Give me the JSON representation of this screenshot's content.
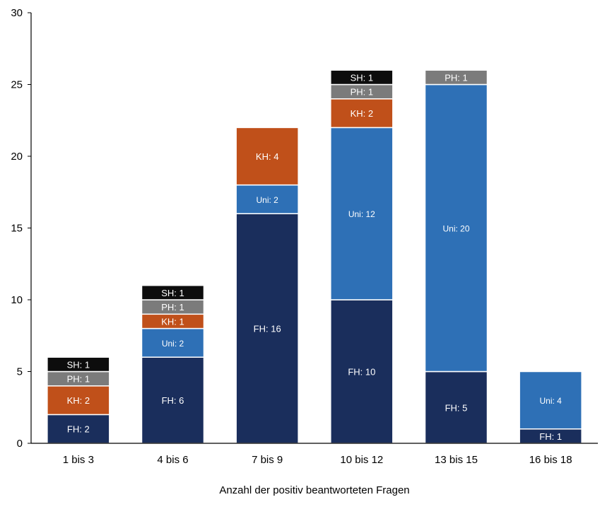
{
  "chart_data": {
    "type": "bar",
    "stacked": true,
    "title": "",
    "xlabel": "Anzahl der positiv beantworteten Fragen",
    "ylabel": "",
    "ylim": [
      0,
      30
    ],
    "yticks": [
      0,
      5,
      10,
      15,
      20,
      25,
      30
    ],
    "grid": false,
    "legend": "none",
    "categories": [
      "1 bis 3",
      "4 bis 6",
      "7 bis 9",
      "10 bis 12",
      "13 bis 15",
      "16 bis 18"
    ],
    "series": [
      {
        "name": "FH",
        "color": "#1a2e5c",
        "values": [
          2,
          6,
          16,
          10,
          5,
          1
        ]
      },
      {
        "name": "Uni",
        "color": "#2e70b6",
        "values": [
          0,
          2,
          2,
          12,
          20,
          4
        ]
      },
      {
        "name": "KH",
        "color": "#c0501a",
        "values": [
          2,
          1,
          4,
          2,
          0,
          0
        ]
      },
      {
        "name": "PH",
        "color": "#7b7b7b",
        "values": [
          1,
          1,
          0,
          1,
          1,
          0
        ]
      },
      {
        "name": "SH",
        "color": "#0d0d0d",
        "values": [
          1,
          1,
          0,
          1,
          0,
          0
        ]
      }
    ]
  }
}
